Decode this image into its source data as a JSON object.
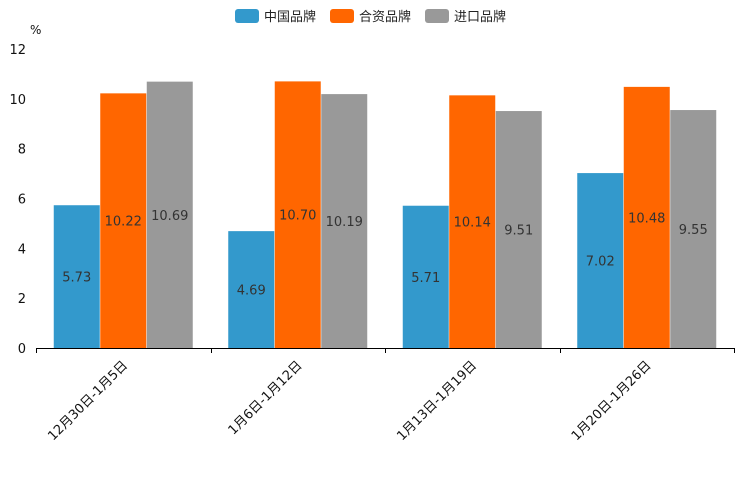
{
  "chart_data": {
    "type": "bar",
    "title": "",
    "ylabel": "%",
    "xlabel": "",
    "ylim": [
      0,
      12
    ],
    "yticks": [
      0,
      2,
      4,
      6,
      8,
      10,
      12
    ],
    "ytick_labels": [
      "0",
      "2",
      "4",
      "6",
      "8",
      "10",
      "12"
    ],
    "categories": [
      "12月30日-1月5日",
      "1月6日-1月12日",
      "1月13日-1月19日",
      "1月20日-1月26日"
    ],
    "series": [
      {
        "name": "中国品牌",
        "color": "#3399CC",
        "values": [
          5.73,
          4.69,
          5.71,
          7.02
        ],
        "labels": [
          "5.73",
          "4.69",
          "5.71",
          "7.02"
        ]
      },
      {
        "name": "合资品牌",
        "color": "#FF6600",
        "values": [
          10.22,
          10.7,
          10.14,
          10.48
        ],
        "labels": [
          "10.22",
          "10.70",
          "10.14",
          "10.48"
        ]
      },
      {
        "name": "进口品牌",
        "color": "#999999",
        "values": [
          10.69,
          10.19,
          9.51,
          9.55
        ],
        "labels": [
          "10.69",
          "10.19",
          "9.51",
          "9.55"
        ]
      }
    ],
    "legend": "top-center",
    "grid": false
  }
}
